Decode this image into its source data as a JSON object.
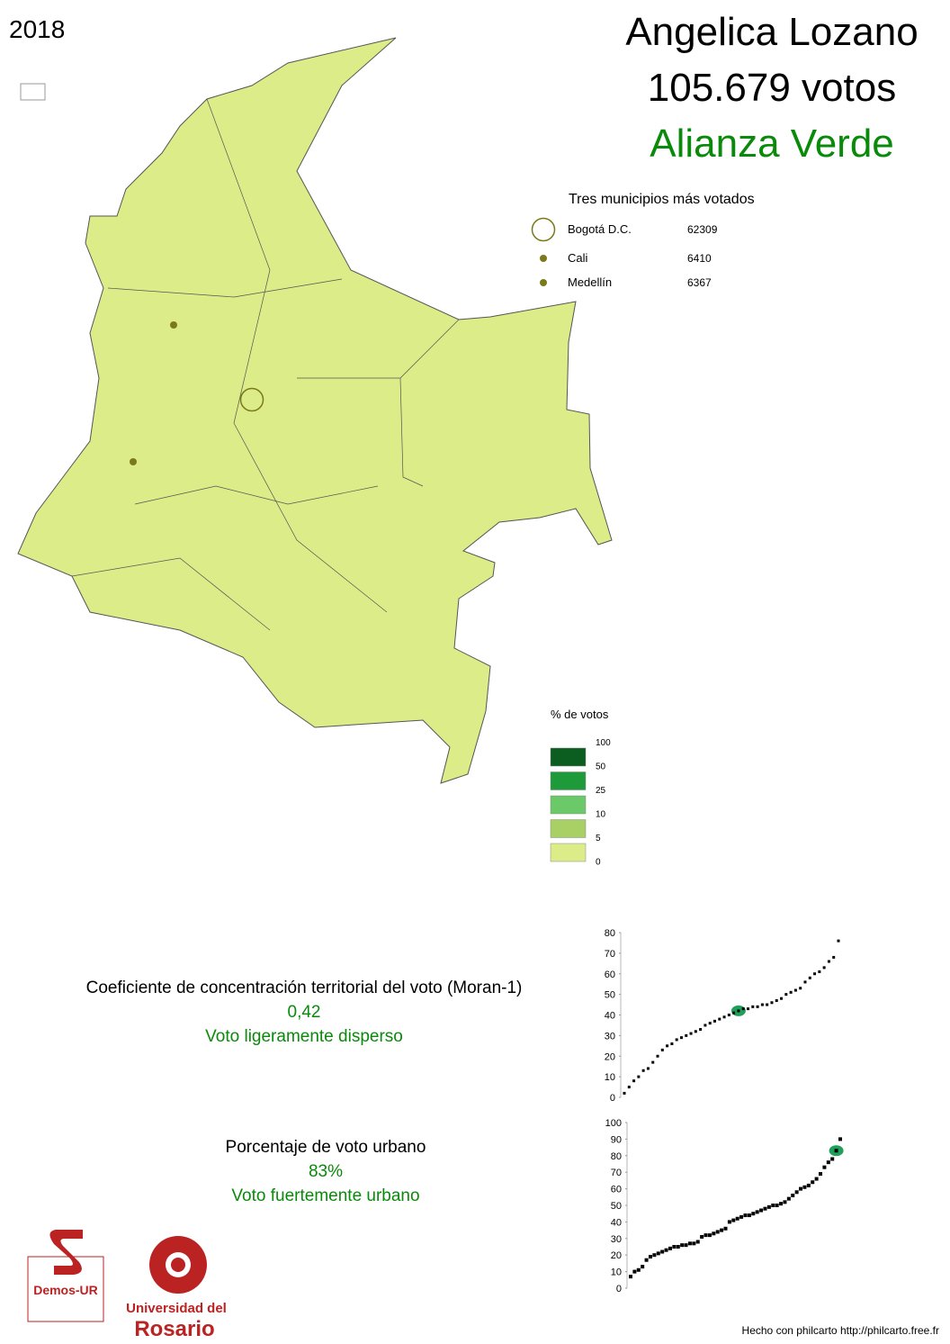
{
  "year": "2018",
  "header": {
    "candidate": "Angelica Lozano",
    "votes": "105.679 votos",
    "party": "Alianza Verde",
    "party_color": "#0a8a0a"
  },
  "top_municipalities": {
    "title": "Tres municipios más votados",
    "color": "#7a7a1a",
    "items": [
      {
        "name": "Bogotá D.C.",
        "votes": 62309
      },
      {
        "name": "Cali",
        "votes": 6410
      },
      {
        "name": "Medellín",
        "votes": 6367
      }
    ]
  },
  "legend": {
    "title": "% de votos",
    "breaks": [
      100,
      50,
      25,
      10,
      5,
      0
    ],
    "colors": [
      "#0b5e20",
      "#1f9a3b",
      "#6cc96a",
      "#a9d065",
      "#dcec88"
    ]
  },
  "map": {
    "fill": "#dcec88"
  },
  "moran": {
    "label": "Coeficiente de concentración territorial del voto (Moran-1)",
    "value": "0,42",
    "description": "Voto ligeramente disperso"
  },
  "urban": {
    "label": "Porcentaje de voto urbano",
    "value": "83%",
    "description": "Voto fuertemente urbano"
  },
  "moran_chart": {
    "ylim": [
      0,
      80
    ],
    "yticks": [
      0,
      10,
      20,
      30,
      40,
      50,
      60,
      70,
      80
    ],
    "highlight": 42,
    "values": [
      2,
      5,
      8,
      10,
      13,
      14,
      17,
      20,
      23,
      25,
      26,
      28,
      29,
      30,
      31,
      32,
      33,
      35,
      36,
      37,
      38,
      39,
      40,
      41,
      42,
      43,
      43,
      44,
      44,
      45,
      45,
      46,
      47,
      48,
      50,
      51,
      52,
      53,
      56,
      58,
      60,
      61,
      63,
      66,
      68,
      76
    ]
  },
  "urban_chart": {
    "ylim": [
      0,
      100
    ],
    "yticks": [
      0,
      10,
      20,
      30,
      40,
      50,
      60,
      70,
      80,
      90,
      100
    ],
    "highlight": 83,
    "values": [
      7,
      10,
      11,
      13,
      17,
      19,
      20,
      21,
      22,
      23,
      24,
      25,
      25,
      26,
      26,
      27,
      27,
      28,
      31,
      32,
      32,
      33,
      34,
      35,
      36,
      40,
      41,
      42,
      43,
      44,
      44,
      45,
      46,
      47,
      48,
      49,
      50,
      50,
      51,
      52,
      54,
      56,
      58,
      60,
      61,
      62,
      64,
      66,
      69,
      73,
      76,
      78,
      83,
      90
    ]
  },
  "logos": {
    "demos": "Demos-UR",
    "university_line1": "Universidad del",
    "university_line2": "Rosario"
  },
  "footer": "Hecho con philcarto http://philcarto.free.fr"
}
